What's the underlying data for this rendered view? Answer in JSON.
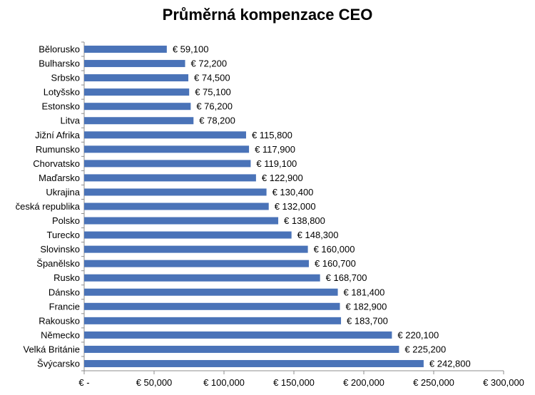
{
  "chart_data": {
    "type": "bar",
    "orientation": "horizontal",
    "title": "Průměrná kompenzace CEO",
    "xlabel": "",
    "ylabel": "",
    "xlim": [
      0,
      300000
    ],
    "grid": false,
    "legend": "none",
    "bar_color": "#4a73b8",
    "categories": [
      "Bělorusko",
      "Bulharsko",
      "Srbsko",
      "Lotyšsko",
      "Estonsko",
      "Litva",
      "Jižní Afrika",
      "Rumunsko",
      "Chorvatsko",
      "Maďarsko",
      "Ukrajina",
      "česká republika",
      "Polsko",
      "Turecko",
      "Slovinsko",
      "Španělsko",
      "Rusko",
      "Dánsko",
      "Francie",
      "Rakousko",
      "Německo",
      "Velká Británie",
      "Švýcarsko"
    ],
    "values": [
      59100,
      72200,
      74500,
      75100,
      76200,
      78200,
      115800,
      117900,
      119100,
      122900,
      130400,
      132000,
      138800,
      148300,
      160000,
      160700,
      168700,
      181400,
      182900,
      183700,
      220100,
      225200,
      242800
    ],
    "value_labels": [
      "€ 59,100",
      "€ 72,200",
      "€ 74,500",
      "€ 75,100",
      "€ 76,200",
      "€ 78,200",
      "€ 115,800",
      "€ 117,900",
      "€ 119,100",
      "€ 122,900",
      "€ 130,400",
      "€ 132,000",
      "€ 138,800",
      "€ 148,300",
      "€ 160,000",
      "€ 160,700",
      "€ 168,700",
      "€ 181,400",
      "€ 182,900",
      "€ 183,700",
      "€ 220,100",
      "€ 225,200",
      "€ 242,800"
    ],
    "x_ticks": [
      0,
      50000,
      100000,
      150000,
      200000,
      250000,
      300000
    ],
    "x_tick_labels": [
      "€ -",
      "€ 50,000",
      "€ 100,000",
      "€ 150,000",
      "€ 200,000",
      "€ 250,000",
      "€ 300,000"
    ]
  }
}
